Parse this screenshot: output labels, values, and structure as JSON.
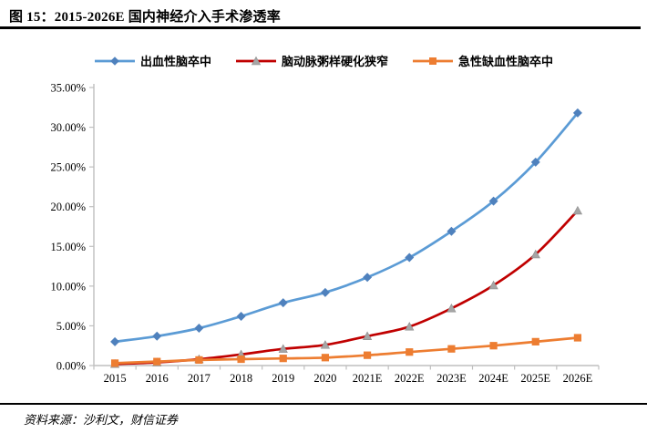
{
  "header": {
    "title": "图 15：2015-2026E 国内神经介入手术渗透率"
  },
  "footer": {
    "source": "资料来源：沙利文，财信证券"
  },
  "chart_data": {
    "type": "line",
    "title": "图 15：2015-2026E 国内神经介入手术渗透率",
    "categories": [
      "2015",
      "2016",
      "2017",
      "2018",
      "2019",
      "2020",
      "2021E",
      "2022E",
      "2023E",
      "2024E",
      "2025E",
      "2026E"
    ],
    "series": [
      {
        "name": "出血性脑卒中",
        "color": "#5B9BD5",
        "marker": "diamond",
        "marker_color": "#4F81BD",
        "values": [
          3.0,
          3.7,
          4.7,
          6.2,
          7.9,
          9.2,
          11.1,
          13.6,
          16.9,
          20.7,
          25.6,
          31.8
        ]
      },
      {
        "name": "脑动脉粥样硬化狭窄",
        "color": "#C00000",
        "marker": "triangle",
        "marker_color": "#A6A6A6",
        "values": [
          0.2,
          0.4,
          0.8,
          1.4,
          2.1,
          2.6,
          3.7,
          4.9,
          7.2,
          10.1,
          14.0,
          19.5
        ]
      },
      {
        "name": "急性缺血性脑卒中",
        "color": "#ED7D31",
        "marker": "square",
        "marker_color": "#ED7D31",
        "values": [
          0.3,
          0.5,
          0.7,
          0.8,
          0.9,
          1.0,
          1.3,
          1.7,
          2.1,
          2.5,
          3.0,
          3.5
        ]
      }
    ],
    "ylabel": "",
    "xlabel": "",
    "ylim": [
      0,
      35
    ],
    "y_tick_step": 5,
    "y_tick_labels": [
      "0.00%",
      "5.00%",
      "10.00%",
      "15.00%",
      "20.00%",
      "25.00%",
      "30.00%",
      "35.00%"
    ],
    "unit": "percent",
    "grid": false,
    "legend_position": "top",
    "axis_color": "#BFBFBF"
  }
}
